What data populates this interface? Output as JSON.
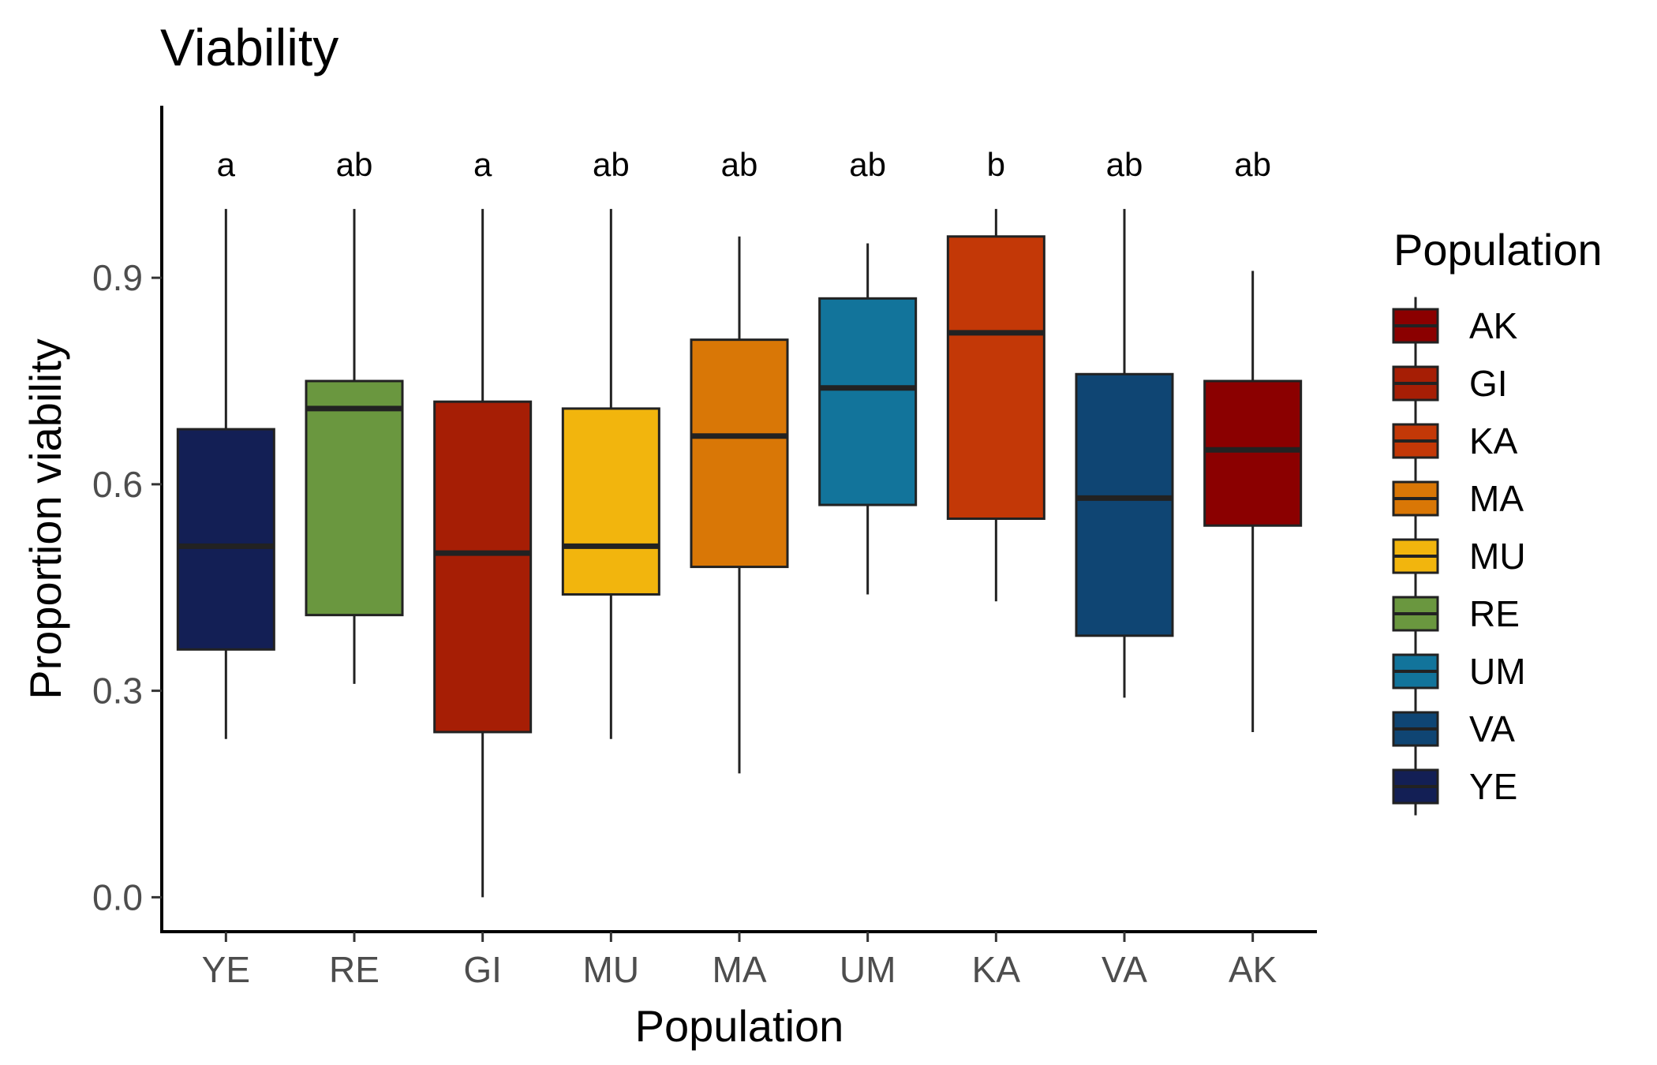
{
  "chart_data": {
    "type": "boxplot",
    "title": "Viability",
    "xlabel": "Population",
    "ylabel": "Proportion viability",
    "ylim": [
      -0.05,
      1.15
    ],
    "yticks": [
      0.0,
      0.3,
      0.6,
      0.9
    ],
    "ytick_labels": [
      "0.0",
      "0.3",
      "0.6",
      "0.9"
    ],
    "grid": false,
    "legend_position": "right",
    "legend_title": "Population",
    "categories": [
      "YE",
      "RE",
      "GI",
      "MU",
      "MA",
      "UM",
      "KA",
      "VA",
      "AK"
    ],
    "boxes": [
      {
        "name": "YE",
        "min": 0.23,
        "q1": 0.36,
        "median": 0.51,
        "q3": 0.68,
        "max": 1.0,
        "letter": "a",
        "color": "#131f55"
      },
      {
        "name": "RE",
        "min": 0.31,
        "q1": 0.41,
        "median": 0.71,
        "q3": 0.75,
        "max": 1.0,
        "letter": "ab",
        "color": "#6a973f"
      },
      {
        "name": "GI",
        "min": 0.0,
        "q1": 0.24,
        "median": 0.5,
        "q3": 0.72,
        "max": 1.0,
        "letter": "a",
        "color": "#a61e05"
      },
      {
        "name": "MU",
        "min": 0.23,
        "q1": 0.44,
        "median": 0.51,
        "q3": 0.71,
        "max": 1.0,
        "letter": "ab",
        "color": "#f2b50d"
      },
      {
        "name": "MA",
        "min": 0.18,
        "q1": 0.48,
        "median": 0.67,
        "q3": 0.81,
        "max": 0.96,
        "letter": "ab",
        "color": "#d97706"
      },
      {
        "name": "UM",
        "min": 0.44,
        "q1": 0.57,
        "median": 0.74,
        "q3": 0.87,
        "max": 0.95,
        "letter": "ab",
        "color": "#12749b"
      },
      {
        "name": "KA",
        "min": 0.43,
        "q1": 0.55,
        "median": 0.82,
        "q3": 0.96,
        "max": 1.0,
        "letter": "b",
        "color": "#c33807"
      },
      {
        "name": "VA",
        "min": 0.29,
        "q1": 0.38,
        "median": 0.58,
        "q3": 0.76,
        "max": 1.0,
        "letter": "ab",
        "color": "#0f4573"
      },
      {
        "name": "AK",
        "min": 0.24,
        "q1": 0.54,
        "median": 0.65,
        "q3": 0.75,
        "max": 0.91,
        "letter": "ab",
        "color": "#8b0000"
      }
    ],
    "legend": [
      {
        "label": "AK",
        "color": "#8b0000"
      },
      {
        "label": "GI",
        "color": "#a61e05"
      },
      {
        "label": "KA",
        "color": "#c33807"
      },
      {
        "label": "MA",
        "color": "#d97706"
      },
      {
        "label": "MU",
        "color": "#f2b50d"
      },
      {
        "label": "RE",
        "color": "#6a973f"
      },
      {
        "label": "UM",
        "color": "#12749b"
      },
      {
        "label": "VA",
        "color": "#0f4573"
      },
      {
        "label": "YE",
        "color": "#131f55"
      }
    ]
  }
}
